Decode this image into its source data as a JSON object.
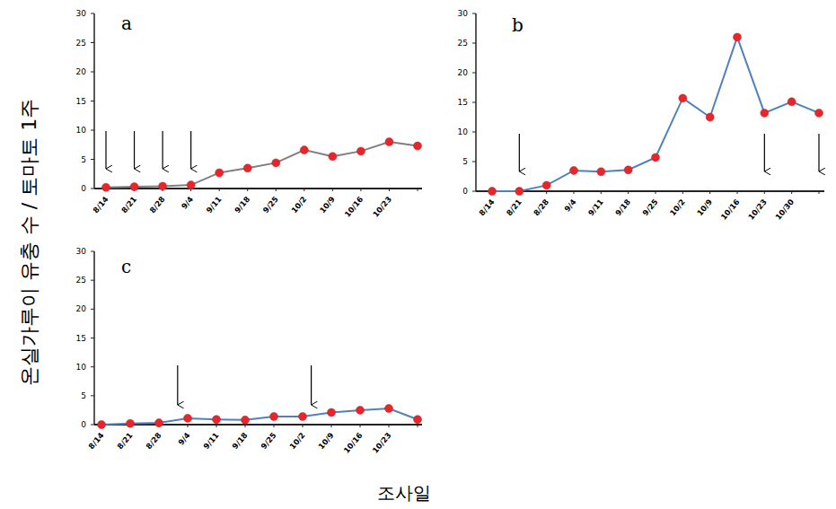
{
  "y_label": "온실가루이 유충 수 / 토마토 1주",
  "x_label": "조사일",
  "chart_data": [
    {
      "type": "line",
      "title": "a",
      "categories": [
        "8/14",
        "8/21",
        "8/28",
        "9/4",
        "9/11",
        "9/18",
        "9/25",
        "10/2",
        "10/9",
        "10/16",
        "10/23",
        null
      ],
      "series": [
        {
          "color": "#7f7f7f",
          "marker": "circle",
          "values": [
            0.2,
            0.3,
            0.4,
            0.6,
            2.7,
            3.5,
            4.4,
            6.6,
            5.5,
            6.4,
            8.0,
            7.3
          ]
        }
      ],
      "ylim": [
        0,
        30
      ],
      "yticks": [
        0,
        5,
        10,
        15,
        20,
        25,
        30
      ],
      "grid": false,
      "arrows": [
        0,
        1,
        2,
        3
      ]
    },
    {
      "type": "line",
      "title": "b",
      "categories": [
        "8/14",
        "8/21",
        "8/28",
        "9/4",
        "9/11",
        "9/18",
        "9/25",
        "10/2",
        "10/9",
        "10/16",
        "10/23",
        "10/30",
        null
      ],
      "series": [
        {
          "color": "#4f81bd",
          "marker": "circle",
          "values": [
            0,
            0,
            1.0,
            3.5,
            3.3,
            3.6,
            5.7,
            15.7,
            12.5,
            26.0,
            13.2,
            15.1,
            13.2
          ]
        }
      ],
      "ylim": [
        0,
        30
      ],
      "yticks": [
        0,
        5,
        10,
        15,
        20,
        25,
        30
      ],
      "grid": false,
      "arrows": [
        1,
        10,
        12
      ]
    },
    {
      "type": "line",
      "title": "c",
      "categories": [
        "8/14",
        "8/21",
        "8/28",
        "9/4",
        "9/11",
        "9/18",
        "9/25",
        "10/2",
        "10/9",
        "10/16",
        "10/23",
        null
      ],
      "series": [
        {
          "color": "#4f81bd",
          "marker": "circle",
          "values": [
            0,
            0.2,
            0.3,
            1.1,
            0.9,
            0.8,
            1.4,
            1.4,
            2.1,
            2.5,
            2.8,
            0.9
          ]
        }
      ],
      "ylim": [
        0,
        30
      ],
      "yticks": [
        0,
        5,
        10,
        15,
        20,
        25,
        30
      ],
      "grid": false,
      "arrows": [
        2.65,
        7.3
      ]
    }
  ]
}
